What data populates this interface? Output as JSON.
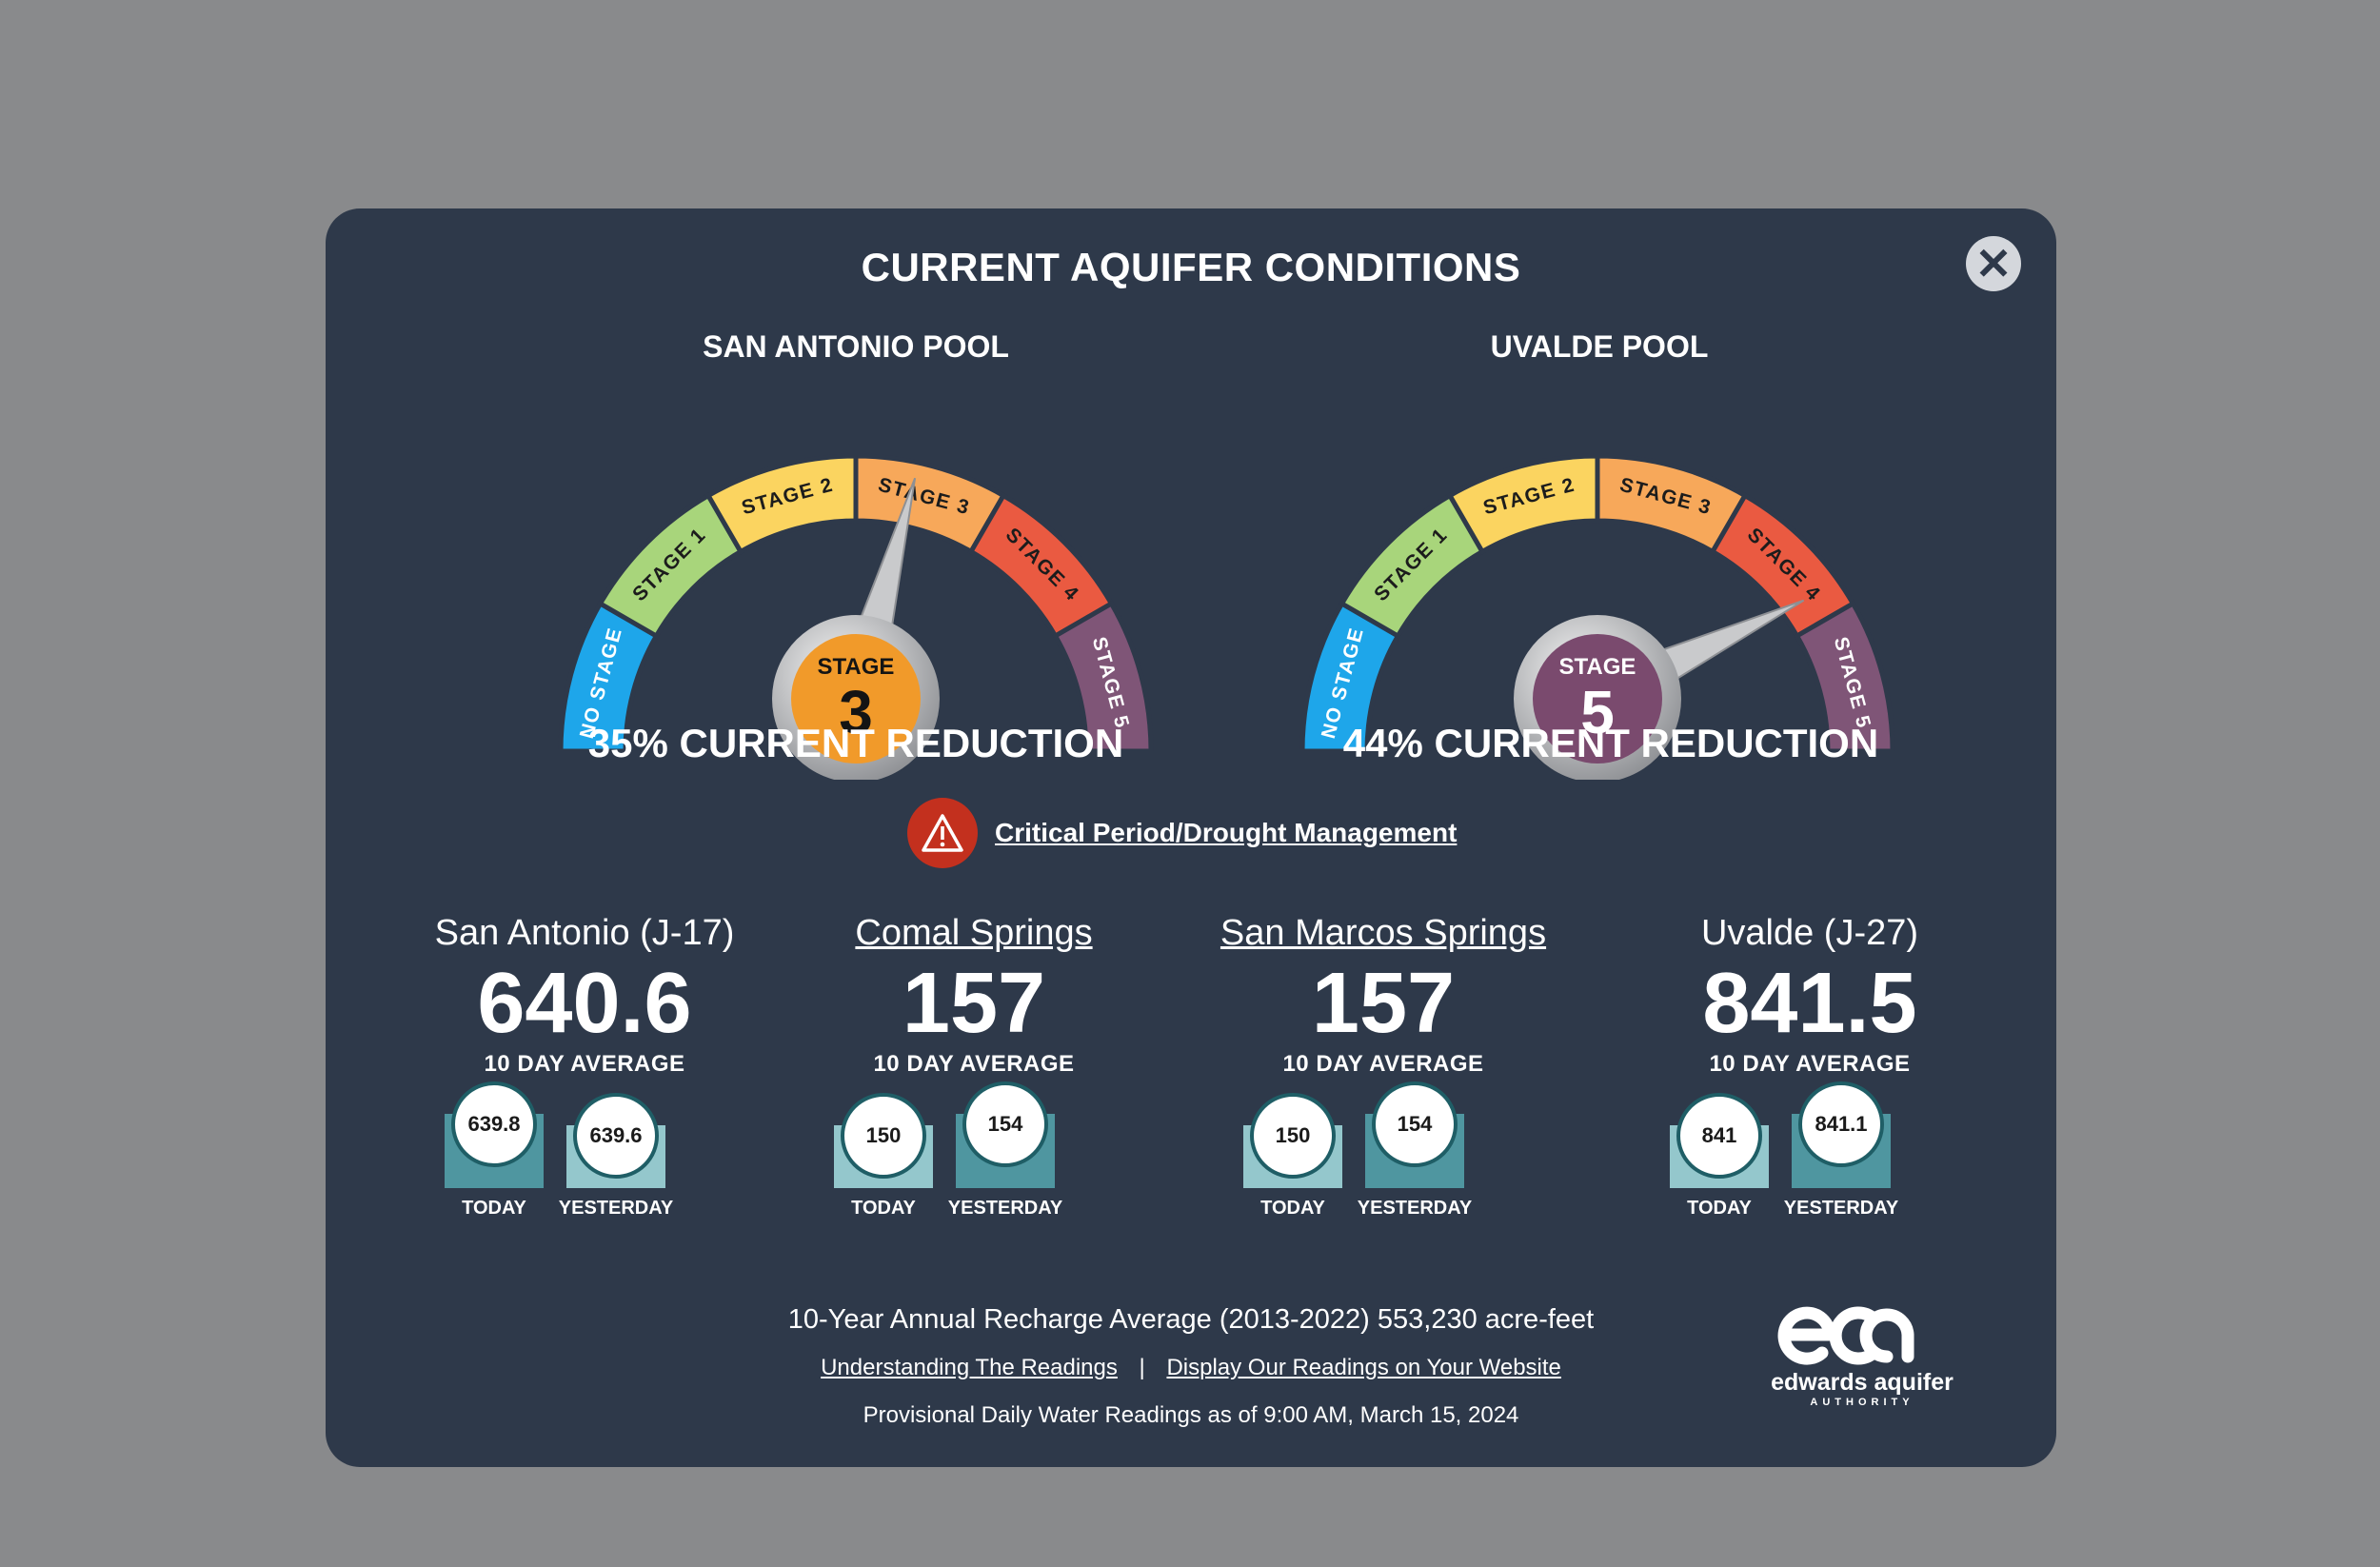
{
  "title": "CURRENT AQUIFER CONDITIONS",
  "close_icon": "close-icon",
  "pools": [
    {
      "name": "SAN ANTONIO POOL",
      "stage_word": "STAGE",
      "stage_number": "3",
      "stage_color": "#f19a2a",
      "reduction": "35% CURRENT REDUCTION",
      "needle_stage_index": 3
    },
    {
      "name": "UVALDE POOL",
      "stage_word": "STAGE",
      "stage_number": "5",
      "stage_color": "#7a4a6e",
      "reduction": "44% CURRENT REDUCTION",
      "needle_stage_index": 5
    }
  ],
  "gauge_segments": [
    {
      "label": "NO STAGE",
      "color": "#1ea6ea"
    },
    {
      "label": "STAGE 1",
      "color": "#a8d57b"
    },
    {
      "label": "STAGE 2",
      "color": "#fbd460"
    },
    {
      "label": "STAGE 3",
      "color": "#f7a85a"
    },
    {
      "label": "STAGE 4",
      "color": "#ea5a41"
    },
    {
      "label": "STAGE 5",
      "color": "#7f5577"
    }
  ],
  "alert": {
    "icon": "warning-icon",
    "text": "Critical Period/Drought Management"
  },
  "stations": [
    {
      "name": "San Antonio (J-17)",
      "link": false,
      "value": "640.6",
      "avg_label": "10 DAY AVERAGE",
      "today": {
        "value": "639.8",
        "label": "TODAY"
      },
      "yesterday": {
        "value": "639.6",
        "label": "YESTERDAY"
      }
    },
    {
      "name": "Comal Springs",
      "link": true,
      "value": "157",
      "avg_label": "10 DAY AVERAGE",
      "today": {
        "value": "150",
        "label": "TODAY"
      },
      "yesterday": {
        "value": "154",
        "label": "YESTERDAY"
      }
    },
    {
      "name": "San Marcos Springs",
      "link": true,
      "value": "157",
      "avg_label": "10 DAY AVERAGE",
      "today": {
        "value": "150",
        "label": "TODAY"
      },
      "yesterday": {
        "value": "154",
        "label": "YESTERDAY"
      }
    },
    {
      "name": "Uvalde (J-27)",
      "link": false,
      "value": "841.5",
      "avg_label": "10 DAY AVERAGE",
      "today": {
        "value": "841",
        "label": "TODAY"
      },
      "yesterday": {
        "value": "841.1",
        "label": "YESTERDAY"
      }
    }
  ],
  "footer": {
    "recharge": "10-Year Annual Recharge Average (2013-2022)  553,230 acre-feet",
    "link1": "Understanding The Readings",
    "separator": "|",
    "link2": "Display Our Readings on Your Website",
    "provisional": "Provisional Daily Water Readings as of 9:00 AM,  March 15, 2024"
  },
  "logo": {
    "mark": "eaa",
    "name": "edwards aquifer",
    "sub": "AUTHORITY"
  },
  "colors": {
    "modal_bg": "#2e394a",
    "bar_dark": "#4f96a0",
    "bar_light": "#94c7cc",
    "alert_red": "#c3301e"
  }
}
